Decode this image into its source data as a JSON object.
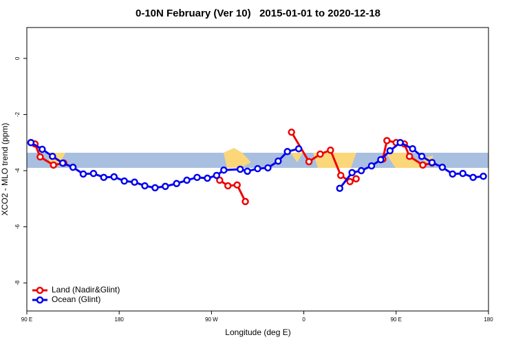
{
  "chart_data": {
    "type": "line",
    "title": "0-10N February (Ver 10)   2015-01-01 to 2020-12-18",
    "x_label": "Longitude (deg E)",
    "y_label": "XCO2 - MLO trend (ppm)",
    "xlim": [
      90,
      540
    ],
    "ylim": [
      -9,
      1.1
    ],
    "xticks": [
      {
        "value": 90,
        "label": "90 E"
      },
      180,
      {
        "value": 270,
        "label": "90 W"
      },
      {
        "value": 360,
        "label": "0"
      },
      {
        "value": 450,
        "label": "90 E"
      },
      {
        "value": 540,
        "label": "180"
      }
    ],
    "yticks": [
      -8,
      -6,
      -4,
      -2,
      0
    ],
    "legend": "lower left",
    "series": [
      {
        "name": "Land (Nadir&Glint)",
        "color": "#ee0000",
        "x": [
          94,
          98,
          103,
          116,
          126,
          200,
          278,
          286,
          295,
          303,
          330,
          348,
          365,
          376,
          386,
          396,
          405,
          411,
          425,
          437,
          441,
          450,
          458,
          463,
          476,
          485
        ],
        "values": [
          -3.0,
          -3.05,
          -3.51,
          -3.8,
          -3.73,
          null,
          -4.34,
          -4.54,
          -4.51,
          -5.1,
          null,
          -2.63,
          -3.68,
          -3.41,
          -3.27,
          -4.17,
          -4.39,
          -4.29,
          null,
          -3.59,
          -2.93,
          -3.0,
          -3.05,
          -3.49,
          -3.8,
          -3.73
        ]
      },
      {
        "name": "Ocean (Glint)",
        "color": "#0000ee",
        "x": [
          94,
          105,
          115,
          125,
          135,
          145,
          155,
          165,
          175,
          185,
          195,
          205,
          215,
          225,
          236,
          246,
          256,
          266,
          275,
          282,
          298,
          305,
          315,
          325,
          335,
          344,
          355,
          375,
          395,
          407,
          416,
          426,
          435,
          444,
          454,
          466,
          475,
          485,
          495,
          505,
          515,
          525,
          535
        ],
        "values": [
          -3.0,
          -3.24,
          -3.49,
          -3.73,
          -3.88,
          -4.12,
          -4.1,
          -4.24,
          -4.22,
          -4.37,
          -4.41,
          -4.54,
          -4.61,
          -4.56,
          -4.46,
          -4.34,
          -4.24,
          -4.27,
          -4.17,
          -3.98,
          -3.95,
          -4.02,
          -3.93,
          -3.9,
          -3.66,
          -3.32,
          -3.22,
          null,
          -4.63,
          -4.07,
          -4.0,
          -3.83,
          -3.61,
          -3.29,
          -3.0,
          -3.22,
          -3.49,
          -3.71,
          -3.88,
          -4.12,
          -4.1,
          -4.24,
          -4.2
        ]
      }
    ]
  }
}
